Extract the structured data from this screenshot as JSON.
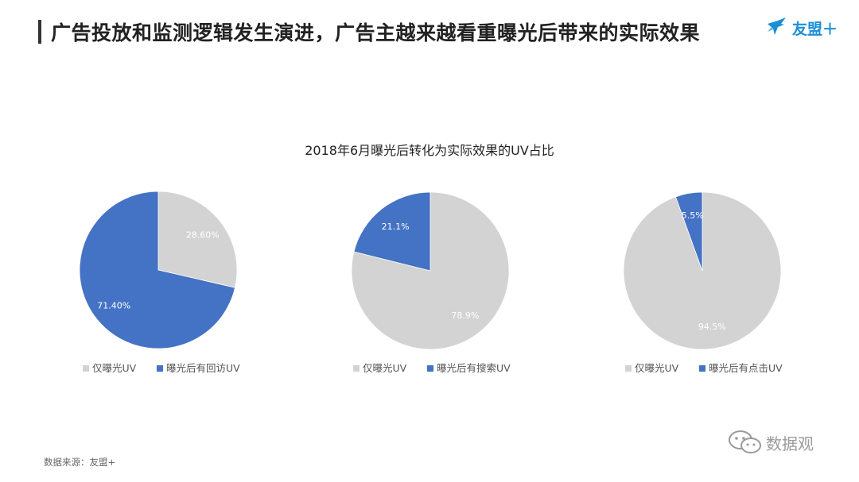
{
  "header": {
    "title": "广告投放和监测逻辑发生演进，广告主越来越看重曝光后带来的实际效果"
  },
  "brand": {
    "logo_text": "友盟＋",
    "color": "#1a8fd8"
  },
  "footer": {
    "source": "数据来源：友盟+"
  },
  "watermark": {
    "text": "数据观",
    "icon": "wechat-icon"
  },
  "colors": {
    "gray": "#d3d3d3",
    "blue": "#4472c4"
  },
  "chart_data": {
    "title": "2018年6月曝光后转化为实际效果的UV占比",
    "charts": [
      {
        "type": "pie",
        "slices": [
          {
            "name": "仅曝光UV",
            "value": 28.6,
            "label": "28.60%",
            "color": "#d3d3d3"
          },
          {
            "name": "曝光后有回访UV",
            "value": 71.4,
            "label": "71.40%",
            "color": "#4472c4"
          }
        ],
        "legend": [
          "仅曝光UV",
          "曝光后有回访UV"
        ],
        "legend_position": "bottom"
      },
      {
        "type": "pie",
        "slices": [
          {
            "name": "仅曝光UV",
            "value": 78.9,
            "label": "78.9%",
            "color": "#d3d3d3"
          },
          {
            "name": "曝光后有搜索UV",
            "value": 21.1,
            "label": "21.1%",
            "color": "#4472c4"
          }
        ],
        "legend": [
          "仅曝光UV",
          "曝光后有搜索UV"
        ],
        "legend_position": "bottom"
      },
      {
        "type": "pie",
        "slices": [
          {
            "name": "仅曝光UV",
            "value": 94.5,
            "label": "94.5%",
            "color": "#d3d3d3"
          },
          {
            "name": "曝光后有点击UV",
            "value": 5.5,
            "label": "5.5%",
            "color": "#4472c4"
          }
        ],
        "legend": [
          "仅曝光UV",
          "曝光后有点击UV"
        ],
        "legend_position": "bottom"
      }
    ]
  }
}
